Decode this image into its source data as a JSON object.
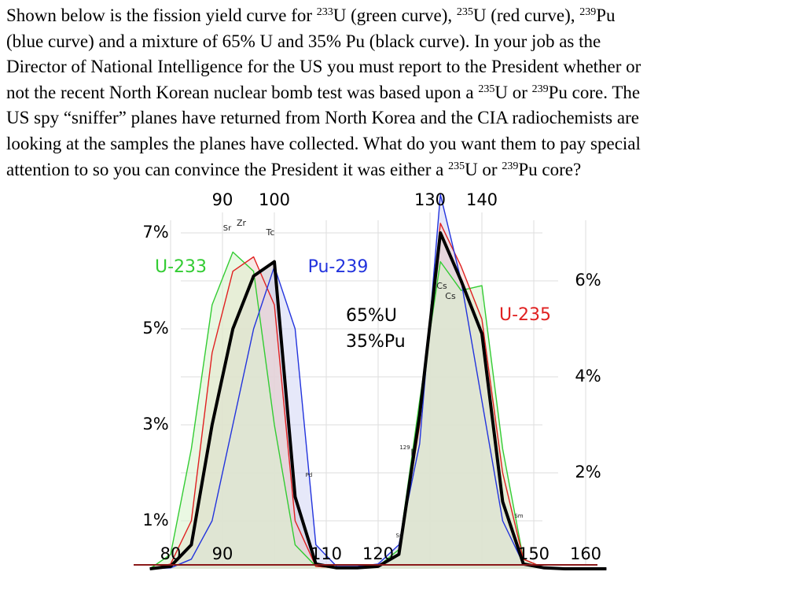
{
  "question": {
    "lines": [
      [
        "Shown below is the fission yield curve for ",
        {
          "sup": "233"
        },
        "U (green curve), ",
        {
          "sup": "235"
        },
        "U (red curve), ",
        {
          "sup": "239"
        },
        "Pu"
      ],
      [
        "(blue curve) and a mixture of 65% U and 35% Pu (black curve).  In your job as the"
      ],
      [
        "Director of National Intelligence for the US you must report to the President whether or"
      ],
      [
        "not the recent North Korean nuclear bomb test was based upon a ",
        {
          "sup": "235"
        },
        "U or ",
        {
          "sup": "239"
        },
        "Pu core.  The"
      ],
      [
        "US spy “sniffer” planes have returned from North Korea and the CIA radiochemists are"
      ],
      [
        "looking at the samples the planes have collected.  What do you want them to pay special"
      ],
      [
        "attention to so you can convince the President it was either a ",
        {
          "sup": "235"
        },
        "U or ",
        {
          "sup": "239"
        },
        "Pu core?"
      ]
    ]
  },
  "chart_data": {
    "type": "line",
    "x": [
      76,
      80,
      84,
      88,
      92,
      96,
      100,
      104,
      108,
      112,
      116,
      120,
      124,
      128,
      132,
      136,
      140,
      144,
      148,
      152,
      156,
      160,
      164
    ],
    "series": [
      {
        "name": "U-233",
        "color": "#33cc33",
        "fill": "#d9f2cc",
        "values": [
          0,
          0.3,
          2.5,
          5.5,
          6.6,
          6.2,
          3.0,
          0.5,
          0.05,
          0.02,
          0.02,
          0.05,
          0.4,
          3.5,
          6.4,
          5.8,
          5.9,
          2.5,
          0.2,
          0.02,
          0,
          0,
          0
        ]
      },
      {
        "name": "U-235",
        "color": "#e02020",
        "fill": "#f2d6d0",
        "values": [
          0,
          0.1,
          1.0,
          4.5,
          6.2,
          6.5,
          5.5,
          1.0,
          0.05,
          0.02,
          0.02,
          0.05,
          0.3,
          3.0,
          7.2,
          6.3,
          5.2,
          2.0,
          0.2,
          0.02,
          0,
          0,
          0
        ]
      },
      {
        "name": "Pu-239",
        "color": "#2233dd",
        "fill": "#d2d6f4",
        "values": [
          0,
          0.02,
          0.2,
          1.0,
          3.0,
          5.0,
          6.3,
          5.0,
          0.5,
          0.05,
          0.05,
          0.1,
          0.5,
          2.6,
          7.8,
          6.0,
          3.5,
          1.0,
          0.1,
          0.02,
          0,
          0,
          0
        ]
      },
      {
        "name_lines": [
          "65%U",
          "35%Pu"
        ],
        "color": "#000000",
        "fill": "#c8c0c4",
        "values": [
          0,
          0.05,
          0.5,
          3.0,
          5.0,
          6.1,
          6.4,
          1.5,
          0.1,
          0.02,
          0.02,
          0.05,
          0.3,
          3.2,
          7.0,
          6.0,
          4.9,
          1.4,
          0.1,
          0.02,
          0,
          0,
          0
        ]
      }
    ],
    "ylim": [
      0,
      8
    ],
    "yticks": [
      {
        "value": 7,
        "label": "7%"
      },
      {
        "value": 5,
        "label": "5%"
      },
      {
        "value": 3,
        "label": "3%"
      },
      {
        "value": 1,
        "label": "1%"
      }
    ],
    "y2ticks": [
      {
        "value": 6,
        "label": "6%"
      },
      {
        "value": 4,
        "label": "4%"
      },
      {
        "value": 2,
        "label": "2%"
      }
    ],
    "xticks_top": [
      90,
      100,
      130,
      140
    ],
    "xticks": [
      80,
      90,
      110,
      120,
      150,
      160
    ],
    "grid": true,
    "annotations": [
      "Sr",
      "Zr",
      "Tc",
      "Cs",
      "Cs",
      "129",
      "I",
      "Pd",
      "Sn",
      "Sm"
    ]
  }
}
